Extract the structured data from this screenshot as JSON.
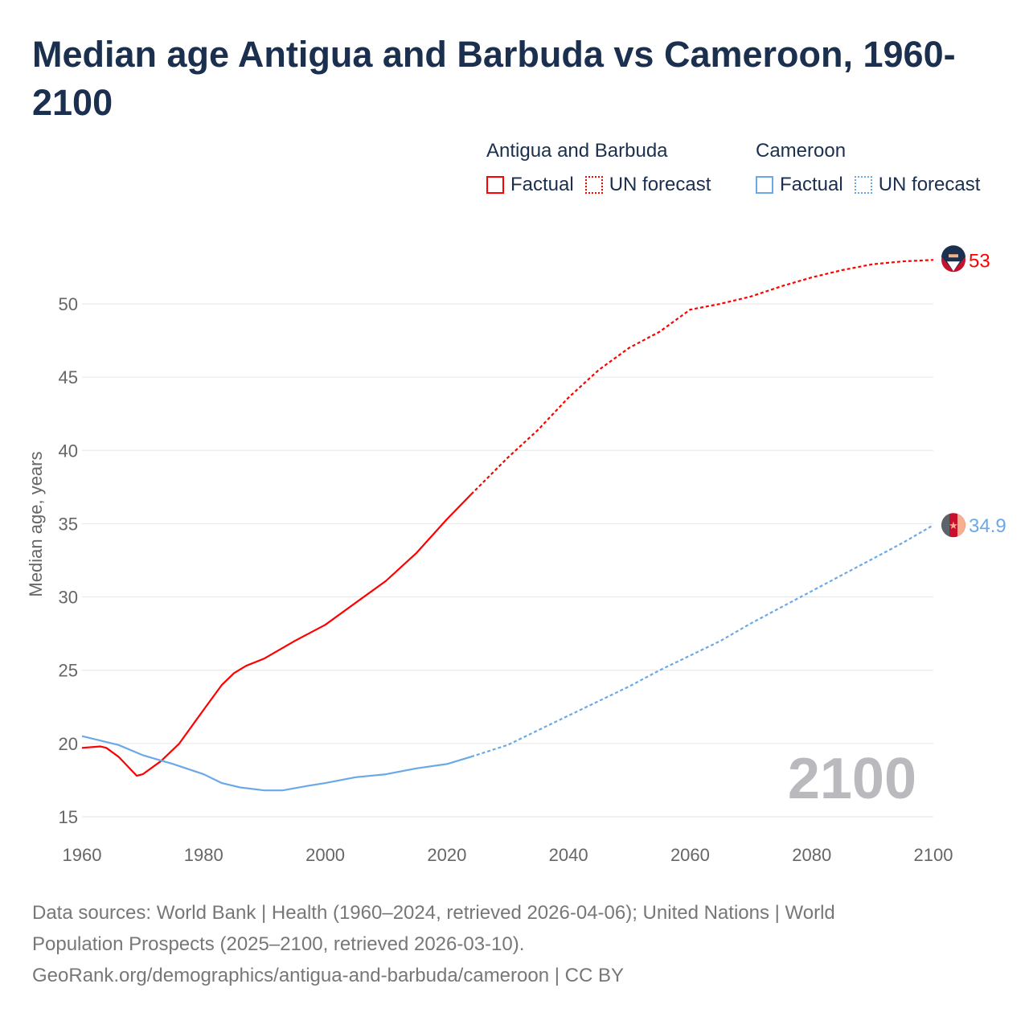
{
  "title": "Median age Antigua and Barbuda vs Cameroon, 1960-2100",
  "legend": {
    "groups": [
      {
        "name": "Antigua and Barbuda",
        "factual": "Factual",
        "forecast": "UN forecast",
        "color": "#ff0000"
      },
      {
        "name": "Cameroon",
        "factual": "Factual",
        "forecast": "UN forecast",
        "color": "#6aa9e6"
      }
    ]
  },
  "year_watermark": "2100",
  "source": {
    "line1": "Data sources: World Bank | Health (1960–2024, retrieved 2026-04-06); United Nations | World",
    "line2": "Population Prospects (2025–2100, retrieved 2026-03-10).",
    "line3": "GeoRank.org/demographics/antigua-and-barbuda/cameroon | CC BY"
  },
  "chart_data": {
    "type": "line",
    "title": "Median age Antigua and Barbuda vs Cameroon, 1960-2100",
    "xlabel": "",
    "ylabel": "Median age, years",
    "xlim": [
      1960,
      2100
    ],
    "ylim": [
      15,
      53
    ],
    "xticks": [
      "1960",
      "1980",
      "2000",
      "2020",
      "2040",
      "2060",
      "2080",
      "2100"
    ],
    "yticks": [
      "15",
      "20",
      "25",
      "30",
      "35",
      "40",
      "45",
      "50"
    ],
    "grid": true,
    "forecast_start": 2024,
    "series": [
      {
        "name": "Antigua and Barbuda",
        "color": "#ff0000",
        "end_label": "53",
        "x": [
          1960,
          1963,
          1964,
          1966,
          1969,
          1970,
          1973,
          1976,
          1980,
          1983,
          1985,
          1987,
          1990,
          1995,
          2000,
          2005,
          2010,
          2015,
          2020,
          2024,
          2030,
          2035,
          2040,
          2045,
          2050,
          2055,
          2060,
          2065,
          2070,
          2075,
          2080,
          2085,
          2090,
          2095,
          2100
        ],
        "y": [
          19.7,
          19.8,
          19.7,
          19.1,
          17.8,
          17.9,
          18.8,
          20.0,
          22.3,
          24.0,
          24.8,
          25.3,
          25.8,
          27.0,
          28.1,
          29.6,
          31.1,
          33.0,
          35.3,
          37.0,
          39.5,
          41.4,
          43.6,
          45.5,
          47.0,
          48.1,
          49.6,
          50.0,
          50.5,
          51.2,
          51.8,
          52.3,
          52.7,
          52.9,
          53.0
        ]
      },
      {
        "name": "Cameroon",
        "color": "#6aa9e6",
        "end_label": "34.9",
        "x": [
          1960,
          1963,
          1966,
          1970,
          1975,
          1980,
          1983,
          1986,
          1990,
          1993,
          1997,
          2000,
          2005,
          2010,
          2015,
          2020,
          2024,
          2030,
          2035,
          2040,
          2045,
          2050,
          2055,
          2060,
          2065,
          2070,
          2075,
          2080,
          2085,
          2090,
          2095,
          2100
        ],
        "y": [
          20.5,
          20.2,
          19.9,
          19.2,
          18.6,
          17.9,
          17.3,
          17.0,
          16.8,
          16.8,
          17.1,
          17.3,
          17.7,
          17.9,
          18.3,
          18.6,
          19.1,
          19.9,
          20.9,
          21.9,
          22.9,
          23.9,
          25.0,
          26.0,
          27.0,
          28.2,
          29.3,
          30.4,
          31.5,
          32.6,
          33.7,
          34.9
        ]
      }
    ]
  }
}
